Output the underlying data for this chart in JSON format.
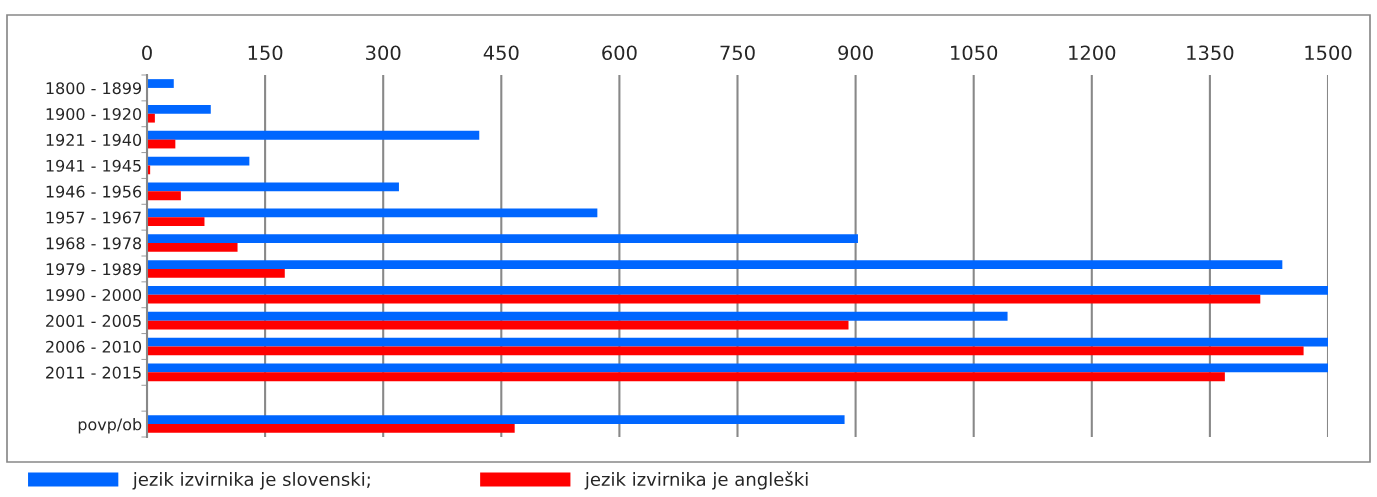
{
  "chart_data": {
    "type": "bar",
    "orientation": "horizontal",
    "categories": [
      "1800 - 1899",
      "1900 - 1920",
      "1921 - 1940",
      "1941 - 1945",
      "1946 - 1956",
      "1957 - 1967",
      "1968 - 1978",
      "1979 - 1989",
      "1990 - 2000",
      "2001 - 2005",
      "2006 - 2010",
      "2011 - 2015",
      null,
      "povp/ob"
    ],
    "series": [
      {
        "name": "jezik izvirnika je slovenski;",
        "color": "#0066ff",
        "values": [
          34,
          81,
          422,
          130,
          320,
          572,
          903,
          1442,
          1500,
          1093,
          1500,
          1500,
          null,
          886
        ]
      },
      {
        "name": "jezik izvirnika je angleški",
        "color": "#ff0000",
        "values": [
          null,
          10,
          36,
          4,
          43,
          73,
          115,
          175,
          1414,
          891,
          1469,
          1369,
          null,
          467
        ]
      }
    ],
    "xlim": [
      0,
      1500
    ],
    "xticks": [
      0,
      150,
      300,
      450,
      600,
      750,
      900,
      1050,
      1200,
      1350,
      1500
    ],
    "grid": "x",
    "legend": "bottom"
  }
}
